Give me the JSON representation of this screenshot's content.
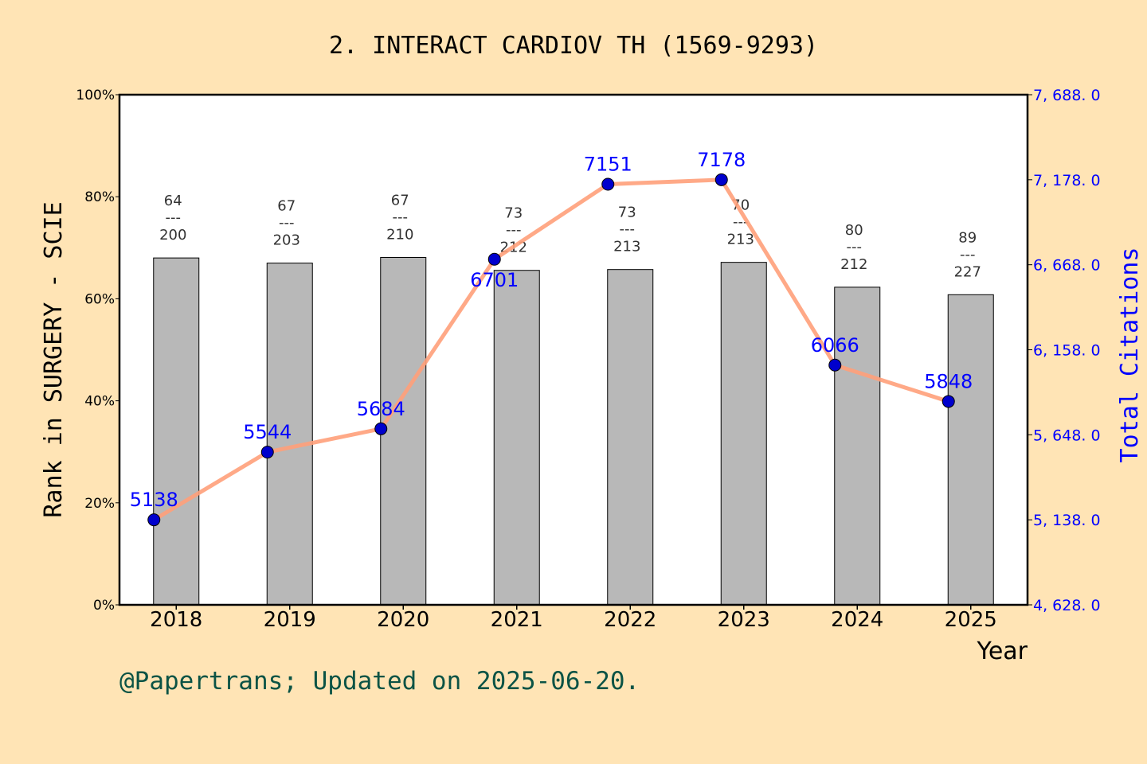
{
  "chart_data": {
    "type": "bar+line",
    "title": "2. INTERACT CARDIOV TH (1569-9293)",
    "xlabel": "Year",
    "ylabel_left": "Rank in SURGERY - SCIE",
    "ylabel_right": "Total Citations",
    "categories": [
      "2018",
      "2019",
      "2020",
      "2021",
      "2022",
      "2023",
      "2024",
      "2025"
    ],
    "left_axis": {
      "range": [
        0,
        100
      ],
      "ticks": [
        "0%",
        "20%",
        "40%",
        "60%",
        "80%",
        "100%"
      ],
      "unit": "%"
    },
    "right_axis": {
      "range": [
        4628,
        7688
      ],
      "ticks": [
        "4, 628. 0",
        "5, 138. 0",
        "5, 648. 0",
        "6, 158. 0",
        "6, 668. 0",
        "7, 178. 0",
        "7, 688. 0"
      ]
    },
    "bars": {
      "rank": [
        64,
        67,
        67,
        73,
        73,
        70,
        80,
        89
      ],
      "total": [
        200,
        203,
        210,
        212,
        213,
        213,
        212,
        227
      ],
      "separator": "---",
      "color": "#B8B8B8"
    },
    "line": {
      "values": [
        5138,
        5544,
        5684,
        6701,
        7151,
        7178,
        6066,
        5848
      ],
      "line_color": "#FFA07A",
      "marker_color": "#0000CD",
      "label_color": "#0000FF"
    },
    "grid": false,
    "legend": "none"
  },
  "footer": {
    "text": "@Papertrans; Updated on 2025-06-20.",
    "color": "#0B5345"
  }
}
